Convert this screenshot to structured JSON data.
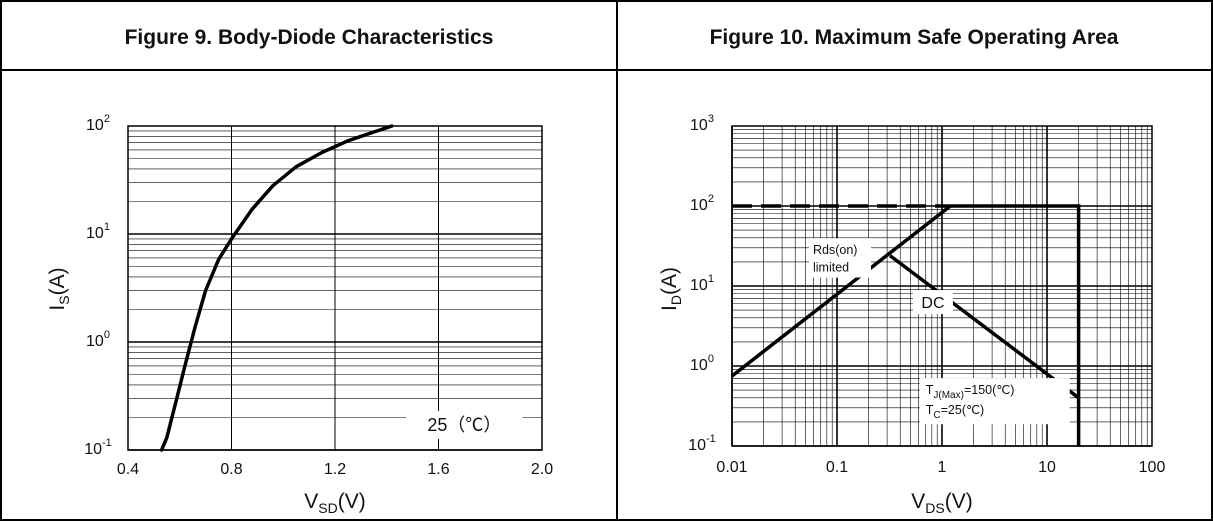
{
  "charts": [
    {
      "header": "Figure 9. Body-Diode Characteristics",
      "chart_data": {
        "type": "line",
        "title": "Figure 9. Body-Diode Characteristics",
        "x_scale": "linear",
        "y_scale": "log",
        "xlim": [
          0.4,
          2.0
        ],
        "ylim": [
          0.1,
          100
        ],
        "x_ticks": [
          "0.4",
          "0.8",
          "1.2",
          "1.6",
          "2.0"
        ],
        "y_ticks": [
          {
            "base": "10",
            "exp": "-1"
          },
          {
            "base": "10",
            "exp": "0"
          },
          {
            "base": "10",
            "exp": "1"
          },
          {
            "base": "10",
            "exp": "2"
          }
        ],
        "xlabel": {
          "main": "V",
          "sub": "SD",
          "unit": "(V)"
        },
        "ylabel": {
          "main": "I",
          "sub": "S",
          "unit": "(A)"
        },
        "grid": true,
        "series": [
          {
            "points": [
              [
                0.53,
                0.1
              ],
              [
                0.55,
                0.13
              ],
              [
                0.58,
                0.25
              ],
              [
                0.62,
                0.6
              ],
              [
                0.66,
                1.4
              ],
              [
                0.7,
                3.0
              ],
              [
                0.75,
                5.8
              ],
              [
                0.8,
                9.0
              ],
              [
                0.88,
                17
              ],
              [
                0.96,
                28
              ],
              [
                1.05,
                42
              ],
              [
                1.15,
                57
              ],
              [
                1.25,
                73
              ],
              [
                1.35,
                88
              ],
              [
                1.42,
                100
              ]
            ]
          }
        ],
        "annotations": [
          {
            "text": "25（℃）",
            "x": 1.7,
            "y": 0.15
          }
        ]
      }
    },
    {
      "header": "Figure 10. Maximum Safe Operating Area",
      "chart_data": {
        "type": "line",
        "title": "Figure 10. Maximum Safe Operating Area",
        "x_scale": "log",
        "y_scale": "log",
        "xlim": [
          0.01,
          100
        ],
        "ylim": [
          0.1,
          1000
        ],
        "x_ticks": [
          "0.01",
          "0.1",
          "1",
          "10",
          "100"
        ],
        "y_ticks": [
          {
            "base": "10",
            "exp": "-1"
          },
          {
            "base": "10",
            "exp": "0"
          },
          {
            "base": "10",
            "exp": "1"
          },
          {
            "base": "10",
            "exp": "2"
          },
          {
            "base": "10",
            "exp": "3"
          }
        ],
        "xlabel": {
          "main": "V",
          "sub": "DS",
          "unit": "(V)"
        },
        "ylabel": {
          "main": "I",
          "sub": "D",
          "unit": "(A)"
        },
        "grid": true,
        "series": [
          {
            "style": "solid",
            "points": [
              [
                0.01,
                0.75
              ],
              [
                1.2,
                100
              ]
            ]
          },
          {
            "style": "solid",
            "points": [
              [
                1.2,
                100
              ],
              [
                20,
                100
              ],
              [
                20,
                0.1
              ]
            ]
          },
          {
            "style": "dashed",
            "points": [
              [
                0.01,
                100
              ],
              [
                1.2,
                100
              ]
            ]
          },
          {
            "style": "solid",
            "points": [
              [
                0.32,
                24
              ],
              [
                20,
                0.4
              ]
            ]
          }
        ],
        "annotations": [
          {
            "text": "Rds(on)",
            "x": 0.1,
            "y": 28
          },
          {
            "text": "limited",
            "x": 0.1,
            "y": 17
          },
          {
            "text": "DC",
            "x": 0.82,
            "y": 6.3
          },
          {
            "main": "T",
            "sub": "J(Max)",
            "rest": "=150(℃)",
            "x": 2.7,
            "y": 0.5
          },
          {
            "main": "T",
            "sub": "C",
            "rest": "=25(℃)",
            "x": 0.7,
            "y": 0.28
          }
        ]
      }
    }
  ]
}
